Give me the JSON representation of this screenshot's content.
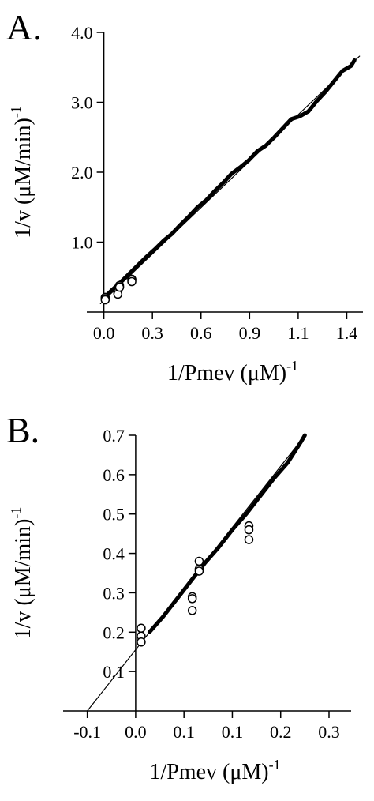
{
  "chart_data": [
    {
      "type": "line",
      "panel_label": "A.",
      "xlabel": "1/Pmev (μM)",
      "xlabel_exponent": "-1",
      "ylabel": "1/v (μM/min)",
      "ylabel_exponent": "-1",
      "xlim": [
        -0.1,
        1.52
      ],
      "ylim": [
        0,
        4.0
      ],
      "xticks": [
        {
          "value": 0,
          "label": "0.0"
        },
        {
          "value": 0.285,
          "label": "0.3"
        },
        {
          "value": 0.57,
          "label": "0.6"
        },
        {
          "value": 0.855,
          "label": "0.9"
        },
        {
          "value": 1.14,
          "label": "1.1"
        },
        {
          "value": 1.425,
          "label": "1.4"
        }
      ],
      "yticks": [
        {
          "value": 1,
          "label": "1.0"
        },
        {
          "value": 2,
          "label": "2.0"
        },
        {
          "value": 3,
          "label": "3.0"
        },
        {
          "value": 4,
          "label": "4.0"
        }
      ],
      "series": [
        {
          "mode": "line",
          "width": 5,
          "color": "#000000",
          "x": [
            0,
            0.05,
            0.1,
            0.15,
            0.2,
            0.25,
            0.3,
            0.35,
            0.4,
            0.45,
            0.5,
            0.55,
            0.6,
            0.65,
            0.7,
            0.75,
            0.8,
            0.85,
            0.9,
            0.95,
            1.0,
            1.05,
            1.1,
            1.15,
            1.2,
            1.25,
            1.3,
            1.35,
            1.4,
            1.45,
            1.47
          ],
          "values": [
            0.2,
            0.32,
            0.43,
            0.55,
            0.67,
            0.79,
            0.9,
            1.02,
            1.12,
            1.25,
            1.37,
            1.5,
            1.6,
            1.73,
            1.85,
            1.98,
            2.07,
            2.17,
            2.3,
            2.38,
            2.5,
            2.63,
            2.76,
            2.8,
            2.87,
            3.02,
            3.15,
            3.3,
            3.45,
            3.52,
            3.6
          ]
        },
        {
          "mode": "line",
          "width": 1.2,
          "color": "#000000",
          "x": [
            -0.02,
            1.5
          ],
          "values": [
            0.12,
            3.66
          ]
        },
        {
          "mode": "points",
          "color": "#000000",
          "x": [
            0.008,
            0.008,
            0.008,
            0.082,
            0.082,
            0.082,
            0.092,
            0.092,
            0.092,
            0.164,
            0.164,
            0.164
          ],
          "values": [
            0.21,
            0.19,
            0.175,
            0.29,
            0.285,
            0.255,
            0.38,
            0.36,
            0.355,
            0.47,
            0.46,
            0.435
          ]
        }
      ]
    },
    {
      "type": "line",
      "panel_label": "B.",
      "xlabel": "1/Pmev (μM)",
      "xlabel_exponent": "-1",
      "ylabel": "1/v (μM/min)",
      "ylabel_exponent": "-1",
      "xlim": [
        -0.105,
        0.312
      ],
      "ylim": [
        0,
        0.7
      ],
      "xticks": [
        {
          "value": -0.07,
          "label": "-0.1"
        },
        {
          "value": 0,
          "label": "0.0"
        },
        {
          "value": 0.07,
          "label": "0.1"
        },
        {
          "value": 0.14,
          "label": "0.1"
        },
        {
          "value": 0.21,
          "label": "0.2"
        },
        {
          "value": 0.28,
          "label": "0.3"
        }
      ],
      "yticks": [
        0.1,
        0.2,
        0.3,
        0.4,
        0.5,
        0.6,
        0.7
      ],
      "series": [
        {
          "mode": "line",
          "width": 5,
          "color": "#000000",
          "x": [
            0.02,
            0.04,
            0.06,
            0.08,
            0.1,
            0.12,
            0.14,
            0.16,
            0.18,
            0.2,
            0.22,
            0.24,
            0.245
          ],
          "values": [
            0.2,
            0.24,
            0.285,
            0.33,
            0.375,
            0.415,
            0.46,
            0.5,
            0.545,
            0.59,
            0.63,
            0.685,
            0.7
          ]
        },
        {
          "mode": "line",
          "width": 1.2,
          "color": "#000000",
          "x": [
            -0.07,
            0.245
          ],
          "values": [
            0,
            0.699
          ]
        },
        {
          "mode": "points",
          "color": "#000000",
          "x": [
            0.008,
            0.008,
            0.008,
            0.082,
            0.082,
            0.082,
            0.092,
            0.092,
            0.092,
            0.164,
            0.164,
            0.164
          ],
          "values": [
            0.21,
            0.19,
            0.175,
            0.29,
            0.285,
            0.255,
            0.38,
            0.36,
            0.355,
            0.47,
            0.46,
            0.435
          ]
        }
      ]
    }
  ]
}
